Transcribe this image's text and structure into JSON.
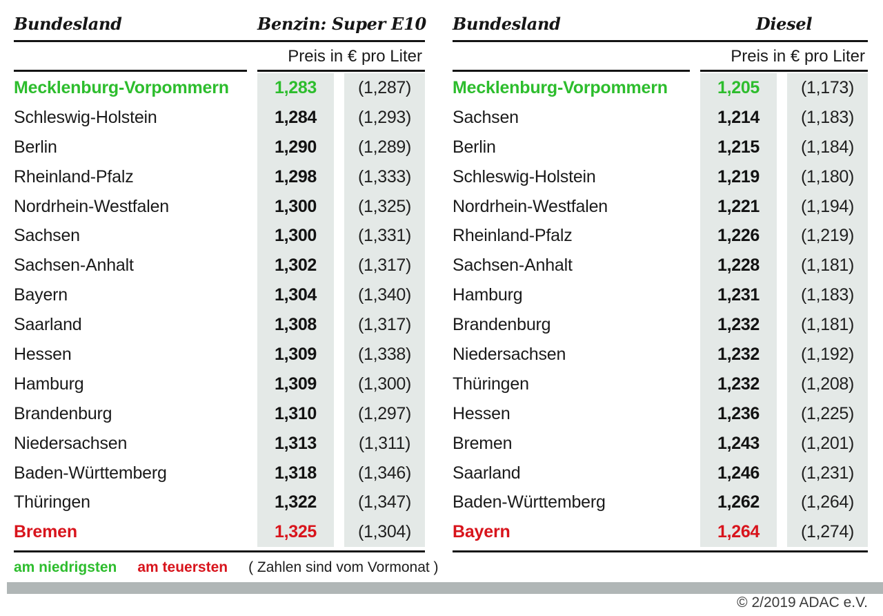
{
  "tables": [
    {
      "bundesland_header": "Bundesland",
      "fuel_header": "Benzin: Super E10",
      "unit_label": "Preis in € pro Liter",
      "rows": [
        {
          "state": "Mecklenburg-Vorpommern",
          "price": "1,283",
          "prev": "(1,287)",
          "highlight": "lowest"
        },
        {
          "state": "Schleswig-Holstein",
          "price": "1,284",
          "prev": "(1,293)"
        },
        {
          "state": "Berlin",
          "price": "1,290",
          "prev": "(1,289)"
        },
        {
          "state": "Rheinland-Pfalz",
          "price": "1,298",
          "prev": "(1,333)"
        },
        {
          "state": "Nordrhein-Westfalen",
          "price": "1,300",
          "prev": "(1,325)"
        },
        {
          "state": "Sachsen",
          "price": "1,300",
          "prev": "(1,331)"
        },
        {
          "state": "Sachsen-Anhalt",
          "price": "1,302",
          "prev": "(1,317)"
        },
        {
          "state": "Bayern",
          "price": "1,304",
          "prev": "(1,340)"
        },
        {
          "state": "Saarland",
          "price": "1,308",
          "prev": "(1,317)"
        },
        {
          "state": "Hessen",
          "price": "1,309",
          "prev": "(1,338)"
        },
        {
          "state": "Hamburg",
          "price": "1,309",
          "prev": "(1,300)"
        },
        {
          "state": "Brandenburg",
          "price": "1,310",
          "prev": "(1,297)"
        },
        {
          "state": "Niedersachsen",
          "price": "1,313",
          "prev": "(1,311)"
        },
        {
          "state": "Baden-Württemberg",
          "price": "1,318",
          "prev": "(1,346)"
        },
        {
          "state": "Thüringen",
          "price": "1,322",
          "prev": "(1,347)"
        },
        {
          "state": "Bremen",
          "price": "1,325",
          "prev": "(1,304)",
          "highlight": "highest"
        }
      ]
    },
    {
      "bundesland_header": "Bundesland",
      "fuel_header": "Diesel",
      "unit_label": "Preis in € pro Liter",
      "rows": [
        {
          "state": "Mecklenburg-Vorpommern",
          "price": "1,205",
          "prev": "(1,173)",
          "highlight": "lowest"
        },
        {
          "state": "Sachsen",
          "price": "1,214",
          "prev": "(1,183)"
        },
        {
          "state": "Berlin",
          "price": "1,215",
          "prev": "(1,184)"
        },
        {
          "state": "Schleswig-Holstein",
          "price": "1,219",
          "prev": "(1,180)"
        },
        {
          "state": "Nordrhein-Westfalen",
          "price": "1,221",
          "prev": "(1,194)"
        },
        {
          "state": "Rheinland-Pfalz",
          "price": "1,226",
          "prev": "(1,219)"
        },
        {
          "state": "Sachsen-Anhalt",
          "price": "1,228",
          "prev": "(1,181)"
        },
        {
          "state": "Hamburg",
          "price": "1,231",
          "prev": "(1,183)"
        },
        {
          "state": "Brandenburg",
          "price": "1,232",
          "prev": "(1,181)"
        },
        {
          "state": "Niedersachsen",
          "price": "1,232",
          "prev": "(1,192)"
        },
        {
          "state": "Thüringen",
          "price": "1,232",
          "prev": "(1,208)"
        },
        {
          "state": "Hessen",
          "price": "1,236",
          "prev": "(1,225)"
        },
        {
          "state": "Bremen",
          "price": "1,243",
          "prev": "(1,201)"
        },
        {
          "state": "Saarland",
          "price": "1,246",
          "prev": "(1,231)"
        },
        {
          "state": "Baden-Württemberg",
          "price": "1,262",
          "prev": "(1,264)"
        },
        {
          "state": "Bayern",
          "price": "1,264",
          "prev": "(1,274)",
          "highlight": "highest"
        }
      ]
    }
  ],
  "legend": {
    "lowest": "am niedrigsten",
    "highest": "am teuersten",
    "note": "( Zahlen sind vom Vormonat )"
  },
  "footer": {
    "copyright": "© 2/2019 ADAC e.V."
  },
  "colors": {
    "green": "#2dbd2d",
    "red": "#d8141c",
    "colbg": "#e4e9e7",
    "bar": "#b0b6b6"
  },
  "chart_data": [
    {
      "type": "table",
      "title": "Benzin: Super E10",
      "unit": "Preis in € pro Liter",
      "columns": [
        "Bundesland",
        "Preis",
        "Vormonat"
      ],
      "rows": [
        [
          "Mecklenburg-Vorpommern",
          1.283,
          1.287
        ],
        [
          "Schleswig-Holstein",
          1.284,
          1.293
        ],
        [
          "Berlin",
          1.29,
          1.289
        ],
        [
          "Rheinland-Pfalz",
          1.298,
          1.333
        ],
        [
          "Nordrhein-Westfalen",
          1.3,
          1.325
        ],
        [
          "Sachsen",
          1.3,
          1.331
        ],
        [
          "Sachsen-Anhalt",
          1.302,
          1.317
        ],
        [
          "Bayern",
          1.304,
          1.34
        ],
        [
          "Saarland",
          1.308,
          1.317
        ],
        [
          "Hessen",
          1.309,
          1.338
        ],
        [
          "Hamburg",
          1.309,
          1.3
        ],
        [
          "Brandenburg",
          1.31,
          1.297
        ],
        [
          "Niedersachsen",
          1.313,
          1.311
        ],
        [
          "Baden-Württemberg",
          1.318,
          1.346
        ],
        [
          "Thüringen",
          1.322,
          1.347
        ],
        [
          "Bremen",
          1.325,
          1.304
        ]
      ],
      "lowest": "Mecklenburg-Vorpommern",
      "highest": "Bremen"
    },
    {
      "type": "table",
      "title": "Diesel",
      "unit": "Preis in € pro Liter",
      "columns": [
        "Bundesland",
        "Preis",
        "Vormonat"
      ],
      "rows": [
        [
          "Mecklenburg-Vorpommern",
          1.205,
          1.173
        ],
        [
          "Sachsen",
          1.214,
          1.183
        ],
        [
          "Berlin",
          1.215,
          1.184
        ],
        [
          "Schleswig-Holstein",
          1.219,
          1.18
        ],
        [
          "Nordrhein-Westfalen",
          1.221,
          1.194
        ],
        [
          "Rheinland-Pfalz",
          1.226,
          1.219
        ],
        [
          "Sachsen-Anhalt",
          1.228,
          1.181
        ],
        [
          "Hamburg",
          1.231,
          1.183
        ],
        [
          "Brandenburg",
          1.232,
          1.181
        ],
        [
          "Niedersachsen",
          1.232,
          1.192
        ],
        [
          "Thüringen",
          1.232,
          1.208
        ],
        [
          "Hessen",
          1.236,
          1.225
        ],
        [
          "Bremen",
          1.243,
          1.201
        ],
        [
          "Saarland",
          1.246,
          1.231
        ],
        [
          "Baden-Württemberg",
          1.262,
          1.264
        ],
        [
          "Bayern",
          1.264,
          1.274
        ]
      ],
      "lowest": "Mecklenburg-Vorpommern",
      "highest": "Bayern"
    }
  ]
}
